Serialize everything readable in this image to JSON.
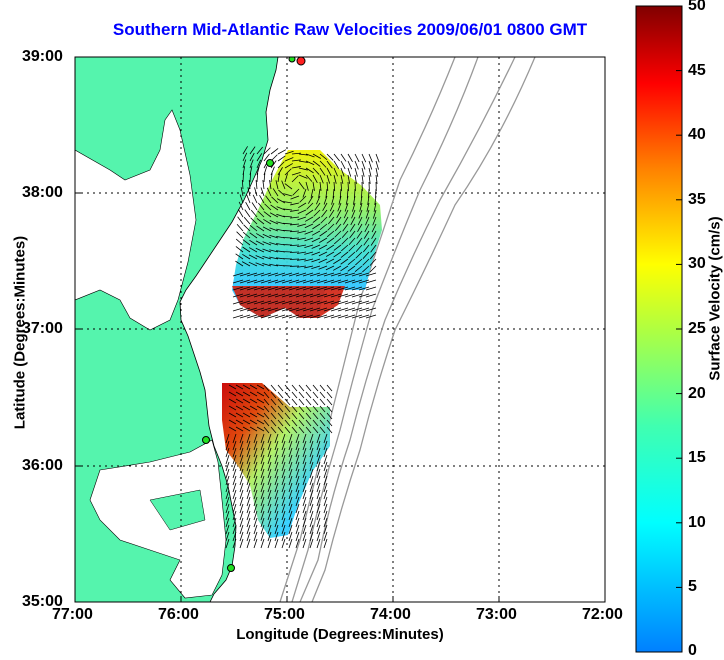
{
  "title": "Southern Mid-Atlantic Raw Velocities 2009/06/01 0800 GMT",
  "xaxis": {
    "label": "Longitude (Degrees:Minutes)",
    "ticks": [
      "77:00",
      "76:00",
      "75:00",
      "74:00",
      "73:00",
      "72:00"
    ]
  },
  "yaxis": {
    "label": "Latitude (Degrees:Minutes)",
    "ticks": [
      "39:00",
      "38:00",
      "37:00",
      "36:00",
      "35:00"
    ]
  },
  "colorbar": {
    "label": "Surface Velocity (cm/s)",
    "ticks": [
      "50",
      "45",
      "40",
      "35",
      "30",
      "25",
      "20",
      "15",
      "10",
      "5",
      "0"
    ],
    "range": [
      0,
      50
    ]
  },
  "colors": {
    "land": "#55f4ad",
    "title": "#0000ff",
    "bathymetry": "#999999"
  }
}
